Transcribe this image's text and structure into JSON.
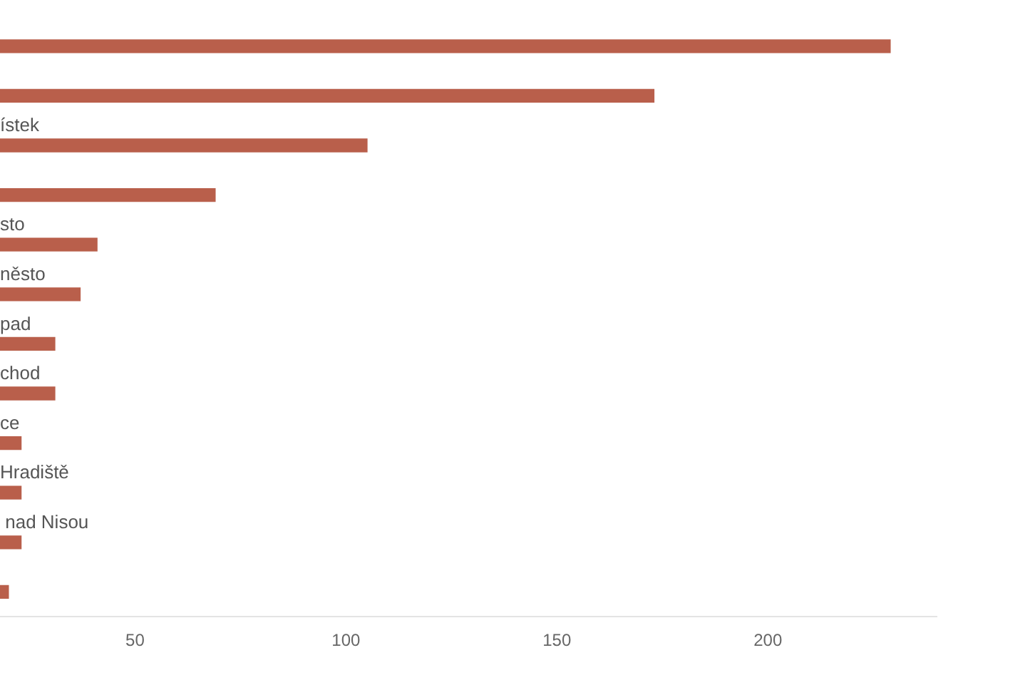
{
  "chart_data": {
    "type": "bar",
    "orientation": "horizontal",
    "categories": [
      null,
      null,
      "ístek",
      null,
      "sto",
      "něsto",
      "pad",
      "chod",
      "ce",
      "Hradiště",
      " nad Nisou",
      null
    ],
    "values": [
      229,
      173,
      105,
      69,
      41,
      37,
      31,
      31,
      23,
      23,
      23,
      20
    ],
    "color": "#b95f4b",
    "xlim": [
      18,
      240
    ],
    "xticks": [
      50,
      100,
      150,
      200
    ],
    "grid": false,
    "legend": false
  }
}
